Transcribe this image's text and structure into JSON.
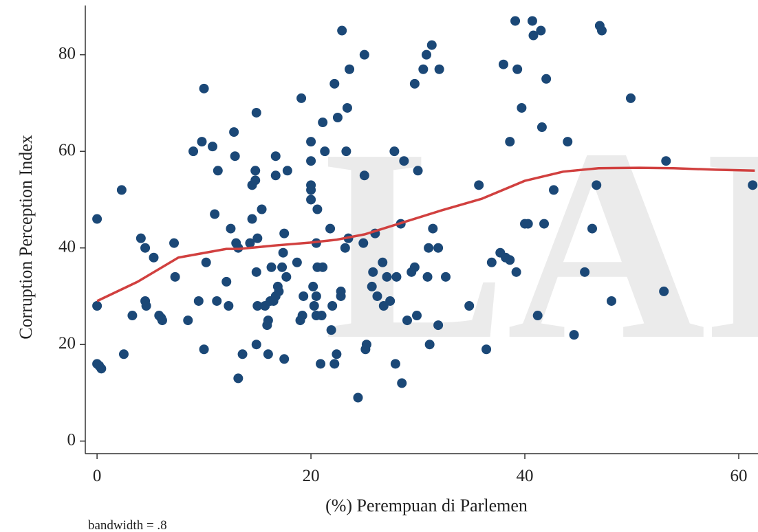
{
  "chart_data": {
    "type": "scatter",
    "watermark": "LAF",
    "xlabel": "(%) Perempuan di Parlemen",
    "ylabel": "Corruption Perception Index",
    "note": "bandwidth = .8",
    "xlim": [
      -1.1,
      61.8
    ],
    "ylim": [
      -2.6,
      90.2
    ],
    "xticks": [
      0,
      20,
      40,
      60
    ],
    "yticks": [
      0,
      20,
      40,
      60,
      80
    ],
    "grid": false,
    "series": [
      {
        "kind": "scatter",
        "color": "#1b4877",
        "x": [
          0,
          0,
          0,
          0.2,
          0.4,
          2.3,
          2.5,
          3.3,
          4.1,
          4.5,
          4.5,
          4.6,
          5.3,
          5.8,
          6,
          6.1,
          7.2,
          7.3,
          8.5,
          9,
          9.5,
          9.8,
          10,
          10,
          10.2,
          10.8,
          11,
          11.2,
          11.3,
          12.1,
          12.3,
          12.5,
          12.8,
          12.9,
          13,
          13.2,
          13.2,
          13.6,
          14.3,
          14.5,
          14.5,
          14.8,
          14.8,
          14.9,
          14.9,
          14.9,
          15,
          15,
          15.4,
          15.7,
          15.9,
          16,
          16,
          16.2,
          16.3,
          16.5,
          16.7,
          16.7,
          16.7,
          16.9,
          17,
          17.3,
          17.4,
          17.5,
          17.5,
          17.7,
          17.8,
          18.7,
          19,
          19.2,
          19.1,
          19.3,
          20,
          20,
          20,
          20,
          20,
          20.2,
          20.3,
          20.5,
          20.5,
          20.5,
          20.6,
          20.6,
          20.9,
          21,
          21.1,
          21.1,
          21.3,
          21.8,
          21.9,
          22,
          22.2,
          22.2,
          22.4,
          22.5,
          22.8,
          22.8,
          22.9,
          23.2,
          23.4,
          23.3,
          23.5,
          23.6,
          24.4,
          24.9,
          25,
          25,
          25.1,
          25.2,
          25.7,
          25.8,
          26,
          26.2,
          26.7,
          26.8,
          27.1,
          27.4,
          27.8,
          27.9,
          28,
          28.4,
          28.5,
          28.7,
          29,
          29.4,
          29.7,
          29.7,
          29.9,
          30,
          30.5,
          30.8,
          30.9,
          31,
          31.1,
          31.3,
          31.4,
          31.9,
          31.9,
          32,
          32.6,
          34.8,
          35.7,
          36.4,
          36.9,
          37.7,
          38,
          38.2,
          38.6,
          38.6,
          39.1,
          39.2,
          39.3,
          39.7,
          40,
          40.3,
          40.7,
          40.8,
          41.2,
          41.5,
          41.6,
          41.8,
          42,
          42.7,
          44,
          44.6,
          45.6,
          46.3,
          46.7,
          47,
          47.2,
          48.1,
          49.9,
          53,
          53.2,
          61.3
        ],
        "values": [
          46,
          28,
          16,
          15.6,
          15,
          52,
          18,
          26,
          42,
          40,
          29,
          28,
          38,
          26,
          25.5,
          25,
          41,
          34,
          25,
          60,
          29,
          62,
          19,
          73,
          37,
          61,
          47,
          29,
          56,
          33,
          28,
          44,
          64,
          59,
          41,
          13,
          40,
          18,
          41,
          46,
          53,
          54,
          56,
          68,
          20,
          35,
          42,
          28,
          48,
          28,
          24,
          25,
          18,
          29,
          36,
          29,
          30,
          59,
          55,
          32,
          31,
          36,
          39,
          43,
          17,
          34,
          56,
          37,
          25,
          26,
          71,
          30,
          53,
          52,
          58,
          62,
          50,
          32,
          28,
          41,
          30,
          26,
          48,
          36,
          16,
          26,
          36,
          66,
          60,
          44,
          23,
          28,
          74,
          16,
          18,
          67,
          30,
          31,
          85,
          40,
          69,
          60,
          42,
          77,
          9,
          41,
          55,
          80,
          19,
          20,
          32,
          35,
          43,
          30,
          37,
          28,
          34,
          29,
          60,
          16,
          34,
          45,
          12,
          58,
          25,
          35,
          74,
          36,
          26,
          56,
          77,
          80,
          34,
          40,
          20,
          82,
          44,
          40,
          24,
          77,
          34,
          28,
          53,
          19,
          37,
          39,
          78,
          38,
          62,
          37.5,
          87,
          35,
          77,
          69,
          45,
          45,
          87,
          84,
          26,
          85,
          65,
          45,
          75,
          52,
          62,
          22,
          35,
          44,
          53,
          86,
          85,
          29,
          71,
          31,
          58,
          53
        ]
      },
      {
        "kind": "line",
        "color": "#d1403f",
        "x": [
          0,
          3.8,
          7.6,
          12.1,
          13.3,
          16.6,
          19.9,
          22.4,
          25,
          28.2,
          32.1,
          36,
          40,
          43.6,
          46.9,
          50.7,
          53.9,
          57.8,
          61.5
        ],
        "values": [
          29,
          33,
          38,
          39.8,
          39.8,
          40.5,
          41.1,
          41.7,
          42.8,
          45,
          47.7,
          50.2,
          53.9,
          55.8,
          56.5,
          56.6,
          56.5,
          56.2,
          56
        ]
      }
    ]
  }
}
